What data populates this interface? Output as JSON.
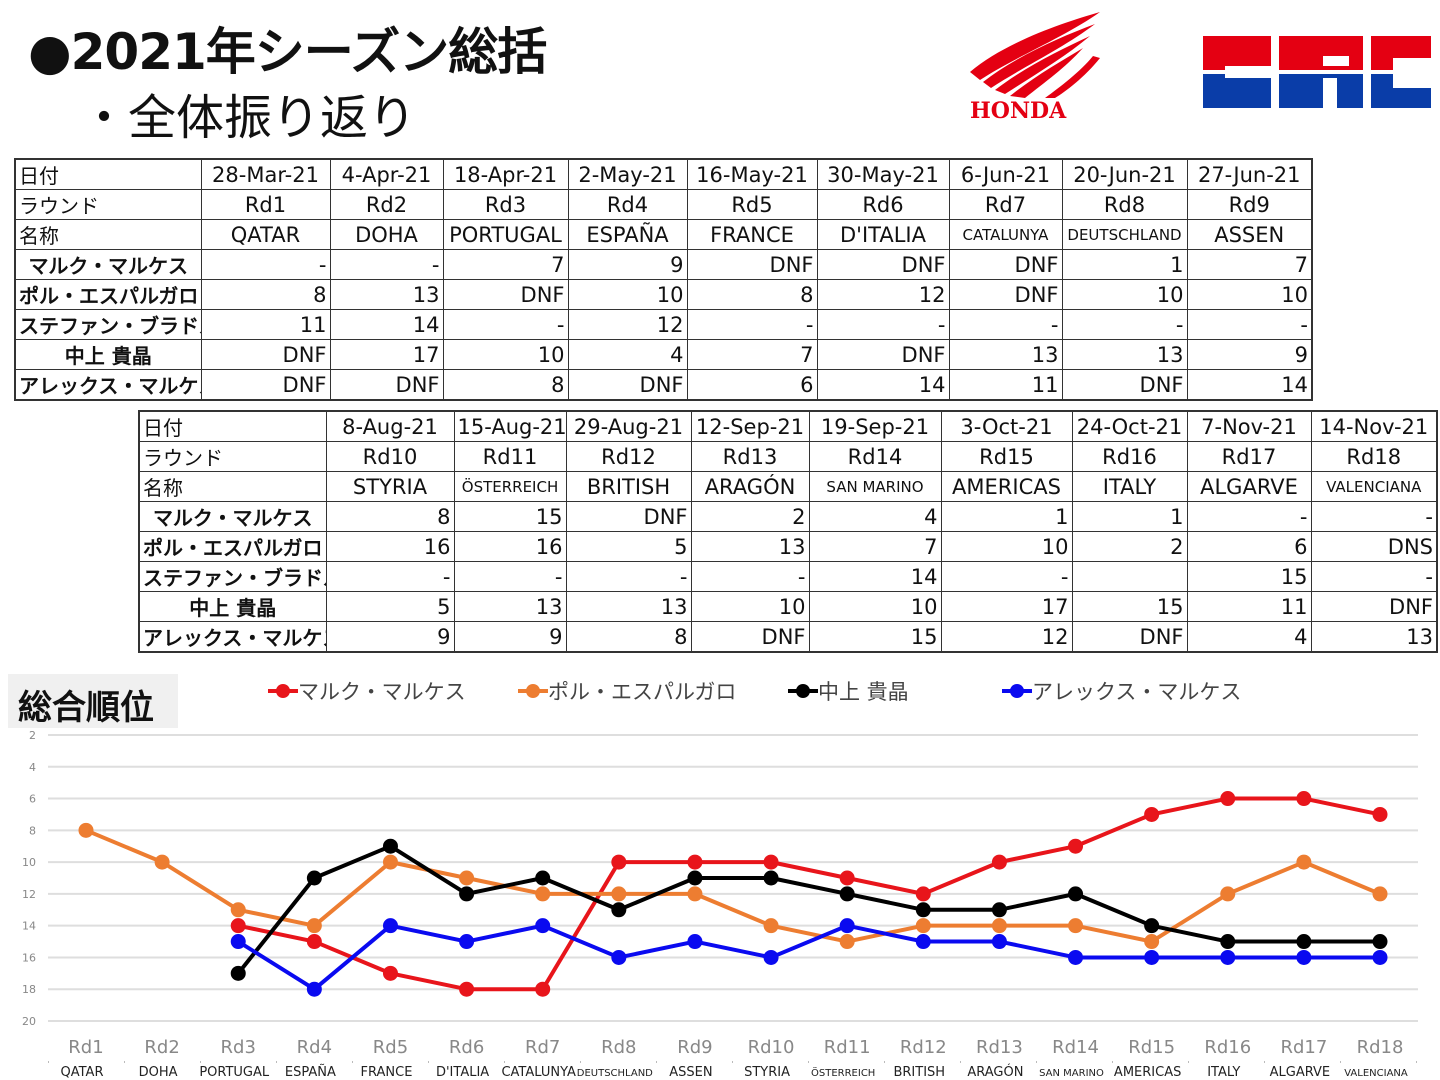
{
  "title": "●2021年シーズン総括",
  "subtitle": "・全体振り返り",
  "logos": {
    "honda": "HONDA",
    "hrc": "HRC"
  },
  "row_labels": [
    "日付",
    "ラウンド",
    "名称"
  ],
  "riders": [
    "マルク・マルケス",
    "ポル・エスパルガロ",
    "ステファン・ブラドル",
    "中上 貴晶",
    "アレックス・マルケス"
  ],
  "table1": {
    "dates": [
      "28-Mar-21",
      "4-Apr-21",
      "18-Apr-21",
      "2-May-21",
      "16-May-21",
      "30-May-21",
      "6-Jun-21",
      "20-Jun-21",
      "27-Jun-21"
    ],
    "rounds": [
      "Rd1",
      "Rd2",
      "Rd3",
      "Rd4",
      "Rd5",
      "Rd6",
      "Rd7",
      "Rd8",
      "Rd9"
    ],
    "names": [
      "QATAR",
      "DOHA",
      "PORTUGAL",
      "ESPAÑA",
      "FRANCE",
      "D'ITALIA",
      "CATALUNYA",
      "DEUTSCHLAND",
      "ASSEN"
    ],
    "results": [
      [
        "-",
        "-",
        "7",
        "9",
        "DNF",
        "DNF",
        "DNF",
        "1",
        "7"
      ],
      [
        "8",
        "13",
        "DNF",
        "10",
        "8",
        "12",
        "DNF",
        "10",
        "10"
      ],
      [
        "11",
        "14",
        "-",
        "12",
        "-",
        "-",
        "-",
        "-",
        "-"
      ],
      [
        "DNF",
        "17",
        "10",
        "4",
        "7",
        "DNF",
        "13",
        "13",
        "9"
      ],
      [
        "DNF",
        "DNF",
        "8",
        "DNF",
        "6",
        "14",
        "11",
        "DNF",
        "14"
      ]
    ]
  },
  "table2": {
    "dates": [
      "8-Aug-21",
      "15-Aug-21",
      "29-Aug-21",
      "12-Sep-21",
      "19-Sep-21",
      "3-Oct-21",
      "24-Oct-21",
      "7-Nov-21",
      "14-Nov-21"
    ],
    "rounds": [
      "Rd10",
      "Rd11",
      "Rd12",
      "Rd13",
      "Rd14",
      "Rd15",
      "Rd16",
      "Rd17",
      "Rd18"
    ],
    "names": [
      "STYRIA",
      "ÖSTERREICH",
      "BRITISH",
      "ARAGÓN",
      "SAN MARINO",
      "AMERICAS",
      "ITALY",
      "ALGARVE",
      "VALENCIANA"
    ],
    "results": [
      [
        "8",
        "15",
        "DNF",
        "2",
        "4",
        "1",
        "1",
        "-",
        "-"
      ],
      [
        "16",
        "16",
        "5",
        "13",
        "7",
        "10",
        "2",
        "6",
        "DNS"
      ],
      [
        "-",
        "-",
        "-",
        "-",
        "14",
        "-",
        "",
        "15",
        "-"
      ],
      [
        "5",
        "13",
        "13",
        "10",
        "10",
        "17",
        "15",
        "11",
        "DNF"
      ],
      [
        "9",
        "9",
        "8",
        "DNF",
        "15",
        "12",
        "DNF",
        "4",
        "13"
      ]
    ]
  },
  "chart_data": {
    "type": "line",
    "title": "総合順位",
    "categories": [
      "Rd1",
      "Rd2",
      "Rd3",
      "Rd4",
      "Rd5",
      "Rd6",
      "Rd7",
      "Rd8",
      "Rd9",
      "Rd10",
      "Rd11",
      "Rd12",
      "Rd13",
      "Rd14",
      "Rd15",
      "Rd16",
      "Rd17",
      "Rd18"
    ],
    "category_names": [
      "QATAR",
      "DOHA",
      "PORTUGAL",
      "ESPAÑA",
      "FRANCE",
      "D'ITALIA",
      "CATALUNYA",
      "DEUTSCHLAND",
      "ASSEN",
      "STYRIA",
      "ÖSTERREICH",
      "BRITISH",
      "ARAGÓN",
      "SAN MARINO",
      "AMERICAS",
      "ITALY",
      "ALGARVE",
      "VALENCIANA"
    ],
    "ylim": [
      2,
      20
    ],
    "y_inverted": true,
    "yticks": [
      2,
      4,
      6,
      8,
      10,
      12,
      14,
      16,
      18,
      20
    ],
    "grid": true,
    "legend": "top",
    "series": [
      {
        "name": "マルク・マルケス",
        "color": "#e8151b",
        "values": [
          null,
          null,
          14,
          15,
          17,
          18,
          18,
          10,
          10,
          10,
          11,
          12,
          10,
          9,
          7,
          6,
          6,
          7
        ]
      },
      {
        "name": "ポル・エスパルガロ",
        "color": "#ed7d31",
        "values": [
          8,
          10,
          13,
          14,
          10,
          11,
          12,
          12,
          12,
          14,
          15,
          14,
          14,
          14,
          15,
          12,
          10,
          12
        ]
      },
      {
        "name": "中上 貴晶",
        "color": "#000000",
        "values": [
          null,
          null,
          17,
          11,
          9,
          12,
          11,
          13,
          11,
          11,
          12,
          13,
          13,
          12,
          14,
          15,
          15,
          15
        ]
      },
      {
        "name": "アレックス・マルケス",
        "color": "#0a0af0",
        "values": [
          null,
          null,
          15,
          18,
          14,
          15,
          14,
          16,
          15,
          16,
          14,
          15,
          15,
          16,
          16,
          16,
          16,
          16
        ]
      }
    ]
  }
}
